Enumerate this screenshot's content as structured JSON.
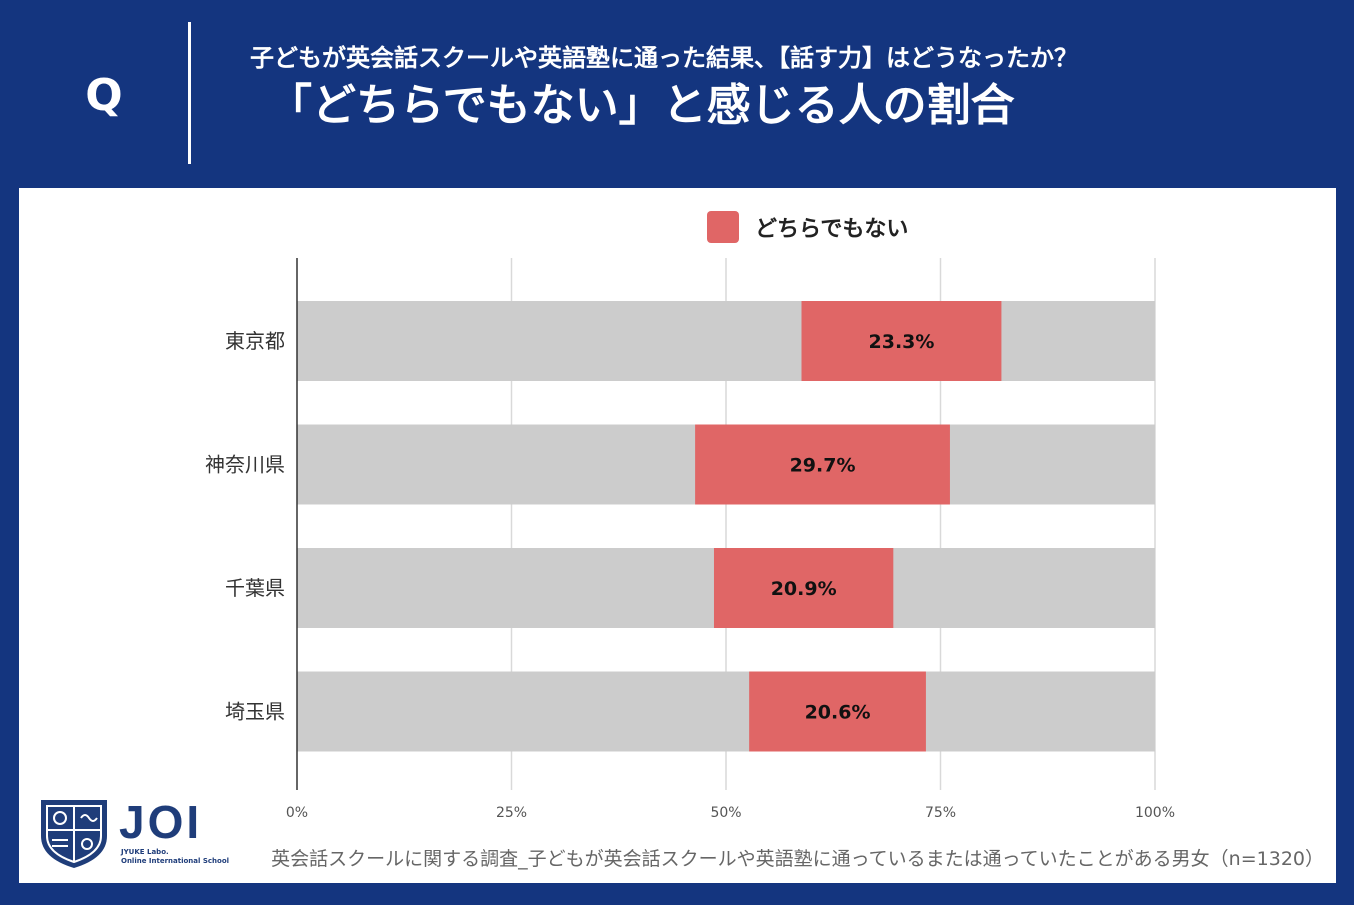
{
  "header": {
    "q_mark": "Q",
    "subtitle": "子どもが英会話スクールや英語塾に通った結果、【話す力】はどうなったか？",
    "title": "「どちらでもない」と感じる人の割合"
  },
  "legend": {
    "label": "どちらでもない"
  },
  "chart_data": {
    "type": "bar",
    "orientation": "horizontal",
    "title": "「どちらでもない」と感じる人の割合",
    "categories": [
      "東京都",
      "神奈川県",
      "千葉県",
      "埼玉県"
    ],
    "series": [
      {
        "name": "どちらでもない",
        "start": [
          58.8,
          46.4,
          48.6,
          52.7
        ],
        "values": [
          23.3,
          29.7,
          20.9,
          20.6
        ],
        "labels": [
          "23.3%",
          "29.7%",
          "20.9%",
          "20.6%"
        ]
      }
    ],
    "background_total": 100,
    "xlim": [
      0,
      100
    ],
    "xticks": [
      0,
      25,
      50,
      75,
      100
    ],
    "xtick_labels": [
      "0%",
      "25%",
      "50%",
      "75%",
      "100%"
    ],
    "grid": true,
    "legend_position": "top"
  },
  "colors": {
    "header_bg": "#14357f",
    "series": "#e06666",
    "track": "#cccccc",
    "grid": "#d9d9d9"
  },
  "logo": {
    "text": "JOI",
    "line1": "JYUKE Labo.",
    "line2": "Online International School"
  },
  "footnote": "英会話スクールに関する調査_子どもが英会話スクールや英語塾に通っているまたは通っていたことがある男女（n=1320）"
}
